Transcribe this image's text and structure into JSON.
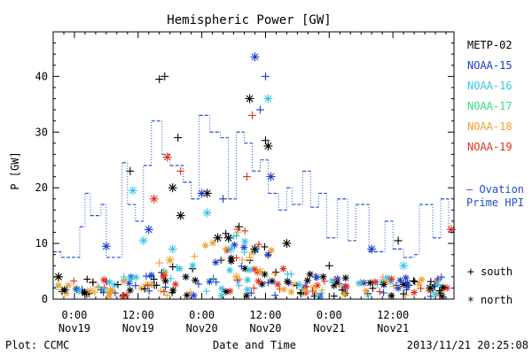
{
  "chart_data": {
    "type": "scatter",
    "title": "Hemispheric Power [GW]",
    "xlabel": "Date and Time",
    "ylabel": "P [GW]",
    "ylim": [
      0,
      48
    ],
    "xlim": [
      "2013-11-18T20:00",
      "2013-11-21T23:30"
    ],
    "yticks": [
      0,
      10,
      20,
      30,
      40
    ],
    "xticks": [
      {
        "t": "2013-11-19T00:00",
        "line1": "0:00",
        "line2": "Nov19"
      },
      {
        "t": "2013-11-19T12:00",
        "line1": "12:00",
        "line2": "Nov19"
      },
      {
        "t": "2013-11-20T00:00",
        "line1": "0:00",
        "line2": "Nov20"
      },
      {
        "t": "2013-11-20T12:00",
        "line1": "12:00",
        "line2": "Nov20"
      },
      {
        "t": "2013-11-21T00:00",
        "line1": "0:00",
        "line2": "Nov21"
      },
      {
        "t": "2013-11-21T12:00",
        "line1": "12:00",
        "line2": "Nov21"
      }
    ],
    "grid": false,
    "legend_position": "right",
    "series": [
      {
        "name": "METP-02",
        "color": "#000000",
        "points": [
          {
            "t": "2013-11-18T21:00",
            "v": 4,
            "h": "north"
          },
          {
            "t": "2013-11-19T03:30",
            "v": 3,
            "h": "south"
          },
          {
            "t": "2013-11-19T10:30",
            "v": 23,
            "h": "south"
          },
          {
            "t": "2013-11-19T16:00",
            "v": 39.5,
            "h": "south"
          },
          {
            "t": "2013-11-19T17:00",
            "v": 40,
            "h": "south"
          },
          {
            "t": "2013-11-19T18:30",
            "v": 20,
            "h": "north"
          },
          {
            "t": "2013-11-19T19:30",
            "v": 29,
            "h": "south"
          },
          {
            "t": "2013-11-19T20:00",
            "v": 15,
            "h": "north"
          },
          {
            "t": "2013-11-20T01:00",
            "v": 19,
            "h": "north"
          },
          {
            "t": "2013-11-20T03:00",
            "v": 11,
            "h": "north"
          },
          {
            "t": "2013-11-20T05:00",
            "v": 11,
            "h": "north"
          },
          {
            "t": "2013-11-20T07:00",
            "v": 13,
            "h": "south"
          },
          {
            "t": "2013-11-20T09:00",
            "v": 36,
            "h": "north"
          },
          {
            "t": "2013-11-20T10:00",
            "v": 9,
            "h": "north"
          },
          {
            "t": "2013-11-20T12:00",
            "v": 28.5,
            "h": "south"
          },
          {
            "t": "2013-11-20T12:30",
            "v": 27.5,
            "h": "north"
          },
          {
            "t": "2013-11-20T16:00",
            "v": 10,
            "h": "north"
          },
          {
            "t": "2013-11-21T00:00",
            "v": 6,
            "h": "south"
          },
          {
            "t": "2013-11-21T13:00",
            "v": 10.5,
            "h": "south"
          },
          {
            "t": "2013-11-21T19:00",
            "v": 2,
            "h": "north"
          }
        ]
      },
      {
        "name": "NOAA-15",
        "color": "#1a3ccc",
        "points": [
          {
            "t": "2013-11-19T06:00",
            "v": 9.5,
            "h": "north"
          },
          {
            "t": "2013-11-19T14:00",
            "v": 12.5,
            "h": "north"
          },
          {
            "t": "2013-11-20T00:00",
            "v": 19,
            "h": "north"
          },
          {
            "t": "2013-11-20T04:00",
            "v": 18,
            "h": "south"
          },
          {
            "t": "2013-11-20T10:00",
            "v": 43.5,
            "h": "north"
          },
          {
            "t": "2013-11-20T11:00",
            "v": 34,
            "h": "south"
          },
          {
            "t": "2013-11-20T12:00",
            "v": 40,
            "h": "south"
          },
          {
            "t": "2013-11-20T13:00",
            "v": 22,
            "h": "north"
          },
          {
            "t": "2013-11-21T08:00",
            "v": 9,
            "h": "north"
          }
        ]
      },
      {
        "name": "NOAA-16",
        "color": "#33c4e8",
        "points": [
          {
            "t": "2013-11-19T11:00",
            "v": 19.5,
            "h": "north"
          },
          {
            "t": "2013-11-19T13:00",
            "v": 10.5,
            "h": "north"
          },
          {
            "t": "2013-11-19T18:30",
            "v": 9,
            "h": "north"
          },
          {
            "t": "2013-11-20T01:00",
            "v": 15.5,
            "h": "north"
          },
          {
            "t": "2013-11-20T05:30",
            "v": 9,
            "h": "north"
          },
          {
            "t": "2013-11-20T12:30",
            "v": 36,
            "h": "north"
          },
          {
            "t": "2013-11-21T14:00",
            "v": 6,
            "h": "north"
          }
        ]
      },
      {
        "name": "NOAA-17",
        "color": "#33e07a",
        "points": []
      },
      {
        "name": "NOAA-18",
        "color": "#f0a030",
        "points": [
          {
            "t": "2013-11-19T03:00",
            "v": 1.5,
            "h": "north"
          },
          {
            "t": "2013-11-19T16:00",
            "v": 6.5,
            "h": "south"
          },
          {
            "t": "2013-11-19T18:00",
            "v": 7,
            "h": "north"
          },
          {
            "t": "2013-11-20T06:30",
            "v": 4,
            "h": "north"
          },
          {
            "t": "2013-11-20T09:00",
            "v": 7.5,
            "h": "south"
          },
          {
            "t": "2013-11-20T11:00",
            "v": 5,
            "h": "north"
          },
          {
            "t": "2013-11-21T02:00",
            "v": 2.5,
            "h": "south"
          }
        ]
      },
      {
        "name": "NOAA-19",
        "color": "#e03020",
        "points": [
          {
            "t": "2013-11-19T15:00",
            "v": 18,
            "h": "north"
          },
          {
            "t": "2013-11-19T17:30",
            "v": 25.5,
            "h": "north"
          },
          {
            "t": "2013-11-19T20:00",
            "v": 23,
            "h": "south"
          },
          {
            "t": "2013-11-20T08:30",
            "v": 22,
            "h": "south"
          },
          {
            "t": "2013-11-20T09:30",
            "v": 33,
            "h": "south"
          },
          {
            "t": "2013-11-21T23:00",
            "v": 12.5,
            "h": "north"
          }
        ]
      }
    ],
    "ovation": {
      "name_line1": "— Ovation",
      "name_line2": "Prime HPI",
      "color": "#1f4fd0",
      "points": [
        {
          "t": "2013-11-18T20:00",
          "v": 8.5
        },
        {
          "t": "2013-11-18T21:30",
          "v": 7.5
        },
        {
          "t": "2013-11-19T01:00",
          "v": 13
        },
        {
          "t": "2013-11-19T02:00",
          "v": 19
        },
        {
          "t": "2013-11-19T03:00",
          "v": 15
        },
        {
          "t": "2013-11-19T05:00",
          "v": 17
        },
        {
          "t": "2013-11-19T06:00",
          "v": 7.5
        },
        {
          "t": "2013-11-19T09:00",
          "v": 24.5
        },
        {
          "t": "2013-11-19T10:00",
          "v": 17
        },
        {
          "t": "2013-11-19T11:30",
          "v": 14
        },
        {
          "t": "2013-11-19T13:00",
          "v": 24
        },
        {
          "t": "2013-11-19T14:30",
          "v": 32
        },
        {
          "t": "2013-11-19T16:30",
          "v": 26
        },
        {
          "t": "2013-11-19T18:00",
          "v": 24
        },
        {
          "t": "2013-11-19T20:30",
          "v": 21
        },
        {
          "t": "2013-11-19T22:00",
          "v": 18
        },
        {
          "t": "2013-11-19T23:30",
          "v": 33
        },
        {
          "t": "2013-11-20T01:30",
          "v": 30
        },
        {
          "t": "2013-11-20T03:30",
          "v": 29
        },
        {
          "t": "2013-11-20T05:00",
          "v": 18
        },
        {
          "t": "2013-11-20T06:30",
          "v": 30
        },
        {
          "t": "2013-11-20T08:00",
          "v": 28
        },
        {
          "t": "2013-11-20T09:30",
          "v": 23
        },
        {
          "t": "2013-11-20T11:00",
          "v": 25
        },
        {
          "t": "2013-11-20T12:30",
          "v": 19
        },
        {
          "t": "2013-11-20T14:30",
          "v": 16
        },
        {
          "t": "2013-11-20T16:00",
          "v": 20
        },
        {
          "t": "2013-11-20T17:00",
          "v": 17
        },
        {
          "t": "2013-11-20T19:00",
          "v": 23
        },
        {
          "t": "2013-11-20T20:30",
          "v": 16.5
        },
        {
          "t": "2013-11-20T22:00",
          "v": 19
        },
        {
          "t": "2013-11-20T23:30",
          "v": 11
        },
        {
          "t": "2013-11-21T01:30",
          "v": 18
        },
        {
          "t": "2013-11-21T03:30",
          "v": 10.5
        },
        {
          "t": "2013-11-21T05:00",
          "v": 17
        },
        {
          "t": "2013-11-21T07:30",
          "v": 8.5
        },
        {
          "t": "2013-11-21T10:30",
          "v": 14
        },
        {
          "t": "2013-11-21T12:00",
          "v": 9
        },
        {
          "t": "2013-11-21T14:00",
          "v": 7.5
        },
        {
          "t": "2013-11-21T16:00",
          "v": 8
        },
        {
          "t": "2013-11-21T17:00",
          "v": 17
        },
        {
          "t": "2013-11-21T19:30",
          "v": 11
        },
        {
          "t": "2013-11-21T21:00",
          "v": 18
        },
        {
          "t": "2013-11-21T22:30",
          "v": 12
        }
      ]
    }
  },
  "symbol_legend": {
    "south_symbol": "+",
    "south_label": "south",
    "north_symbol": "*",
    "north_label": "north"
  },
  "footer": {
    "left": "Plot: CCMC",
    "right": "2013/11/21 20:25:08"
  }
}
